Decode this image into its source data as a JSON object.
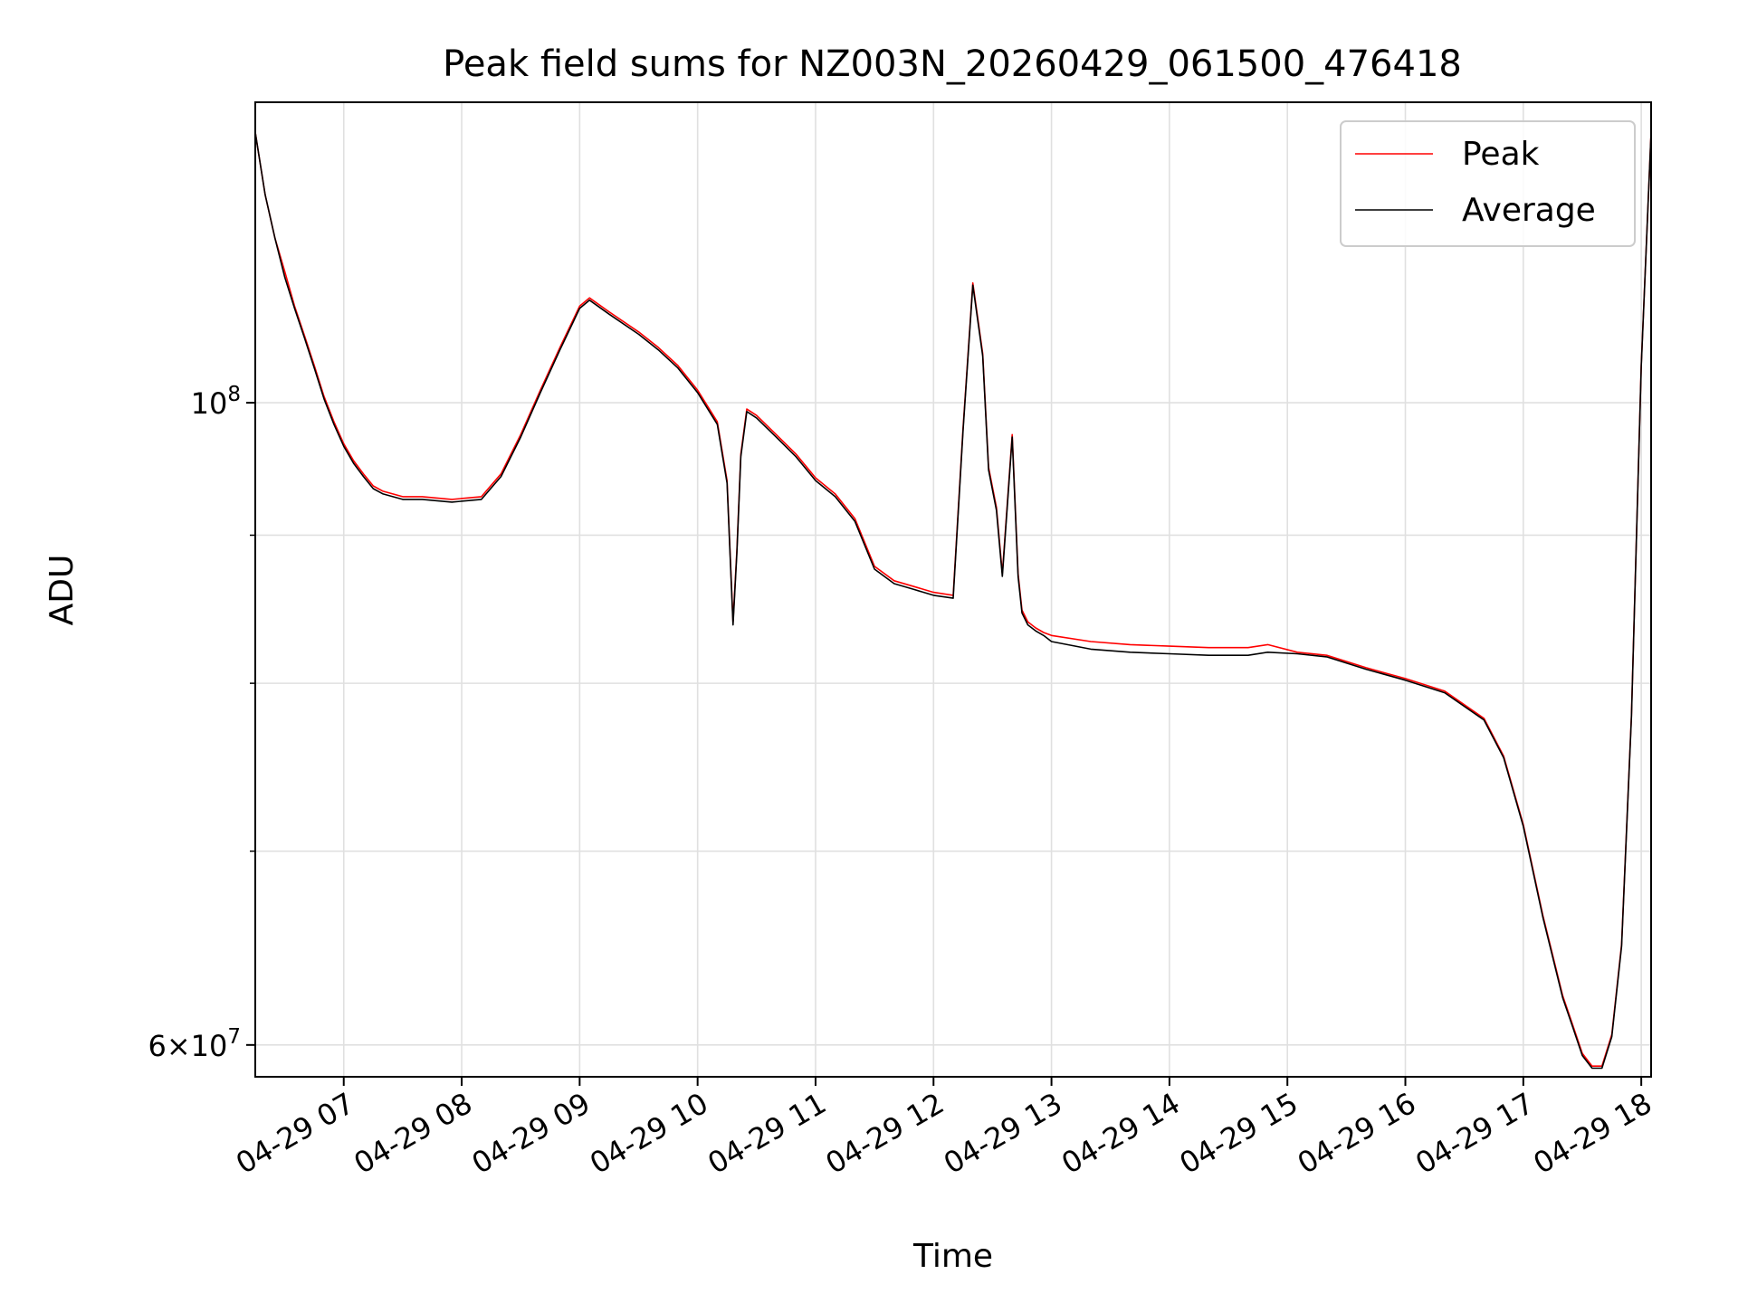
{
  "chart_data": {
    "type": "line",
    "title": "Peak field sums for NZ003N_20260429_061500_476418",
    "xlabel": "Time",
    "ylabel": "ADU",
    "yscale": "log",
    "grid": true,
    "legend_position": "top-right",
    "xlim": [
      "2026-04-29 06:15",
      "2026-04-29 18:05"
    ],
    "ylim": [
      58500000,
      127000000
    ],
    "x_ticks": [
      {
        "t": "2026-04-29 07:00",
        "label": "04-29 07"
      },
      {
        "t": "2026-04-29 08:00",
        "label": "04-29 08"
      },
      {
        "t": "2026-04-29 09:00",
        "label": "04-29 09"
      },
      {
        "t": "2026-04-29 10:00",
        "label": "04-29 10"
      },
      {
        "t": "2026-04-29 11:00",
        "label": "04-29 11"
      },
      {
        "t": "2026-04-29 12:00",
        "label": "04-29 12"
      },
      {
        "t": "2026-04-29 13:00",
        "label": "04-29 13"
      },
      {
        "t": "2026-04-29 14:00",
        "label": "04-29 14"
      },
      {
        "t": "2026-04-29 15:00",
        "label": "04-29 15"
      },
      {
        "t": "2026-04-29 16:00",
        "label": "04-29 16"
      },
      {
        "t": "2026-04-29 17:00",
        "label": "04-29 17"
      },
      {
        "t": "2026-04-29 18:00",
        "label": "04-29 18"
      }
    ],
    "y_major_ticks": [
      {
        "value": 100000000,
        "label_base": "10",
        "label_exp": "8"
      },
      {
        "value": 60000000,
        "label_base": "6×10",
        "label_exp": "7"
      }
    ],
    "y_minor_ticks": [
      70000000,
      80000000,
      90000000
    ],
    "series": [
      {
        "name": "Peak",
        "color": "#ff0000",
        "x": [
          "2026-04-29 06:15",
          "2026-04-29 06:20",
          "2026-04-29 06:25",
          "2026-04-29 06:30",
          "2026-04-29 06:35",
          "2026-04-29 06:40",
          "2026-04-29 06:45",
          "2026-04-29 06:50",
          "2026-04-29 06:55",
          "2026-04-29 07:00",
          "2026-04-29 07:05",
          "2026-04-29 07:10",
          "2026-04-29 07:15",
          "2026-04-29 07:20",
          "2026-04-29 07:30",
          "2026-04-29 07:40",
          "2026-04-29 07:55",
          "2026-04-29 08:10",
          "2026-04-29 08:20",
          "2026-04-29 08:30",
          "2026-04-29 08:40",
          "2026-04-29 08:50",
          "2026-04-29 09:00",
          "2026-04-29 09:05",
          "2026-04-29 09:15",
          "2026-04-29 09:30",
          "2026-04-29 09:40",
          "2026-04-29 09:50",
          "2026-04-29 10:00",
          "2026-04-29 10:10",
          "2026-04-29 10:15",
          "2026-04-29 10:18",
          "2026-04-29 10:20",
          "2026-04-29 10:22",
          "2026-04-29 10:25",
          "2026-04-29 10:30",
          "2026-04-29 10:40",
          "2026-04-29 10:50",
          "2026-04-29 11:00",
          "2026-04-29 11:10",
          "2026-04-29 11:20",
          "2026-04-29 11:30",
          "2026-04-29 11:40",
          "2026-04-29 11:50",
          "2026-04-29 12:00",
          "2026-04-29 12:10",
          "2026-04-29 12:15",
          "2026-04-29 12:20",
          "2026-04-29 12:25",
          "2026-04-29 12:28",
          "2026-04-29 12:32",
          "2026-04-29 12:35",
          "2026-04-29 12:40",
          "2026-04-29 12:43",
          "2026-04-29 12:45",
          "2026-04-29 12:48",
          "2026-04-29 12:52",
          "2026-04-29 12:56",
          "2026-04-29 13:00",
          "2026-04-29 13:20",
          "2026-04-29 13:40",
          "2026-04-29 14:00",
          "2026-04-29 14:20",
          "2026-04-29 14:40",
          "2026-04-29 14:50",
          "2026-04-29 15:05",
          "2026-04-29 15:20",
          "2026-04-29 15:40",
          "2026-04-29 16:00",
          "2026-04-29 16:20",
          "2026-04-29 16:40",
          "2026-04-29 16:50",
          "2026-04-29 17:00",
          "2026-04-29 17:10",
          "2026-04-29 17:20",
          "2026-04-29 17:25",
          "2026-04-29 17:30",
          "2026-04-29 17:35",
          "2026-04-29 17:40",
          "2026-04-29 17:45",
          "2026-04-29 17:50",
          "2026-04-29 17:55",
          "2026-04-29 18:00",
          "2026-04-29 18:05"
        ],
        "y": [
          124000000,
          118000000,
          114000000,
          111000000,
          108000000,
          105500000,
          103000000,
          100500000,
          98500000,
          96800000,
          95500000,
          94500000,
          93600000,
          93200000,
          92800000,
          92800000,
          92600000,
          92800000,
          94500000,
          97500000,
          101000000,
          104500000,
          108000000,
          108700000,
          107500000,
          105800000,
          104500000,
          103000000,
          101000000,
          98500000,
          94000000,
          84000000,
          89000000,
          96000000,
          99500000,
          99000000,
          97500000,
          96000000,
          94200000,
          93000000,
          91200000,
          87800000,
          86800000,
          86400000,
          86000000,
          85800000,
          98000000,
          110000000,
          104000000,
          95000000,
          92000000,
          87300000,
          97500000,
          87300000,
          84800000,
          84000000,
          83600000,
          83300000,
          83100000,
          82700000,
          82500000,
          82400000,
          82300000,
          82300000,
          82500000,
          82000000,
          81800000,
          81000000,
          80300000,
          79500000,
          77800000,
          75500000,
          71500000,
          66500000,
          62400000,
          61000000,
          59600000,
          59000000,
          59000000,
          60500000,
          65000000,
          78000000,
          103000000,
          124000000
        ]
      },
      {
        "name": "Average",
        "color": "#000000",
        "x": [
          "2026-04-29 06:15",
          "2026-04-29 06:20",
          "2026-04-29 06:25",
          "2026-04-29 06:30",
          "2026-04-29 06:35",
          "2026-04-29 06:40",
          "2026-04-29 06:45",
          "2026-04-29 06:50",
          "2026-04-29 06:55",
          "2026-04-29 07:00",
          "2026-04-29 07:05",
          "2026-04-29 07:10",
          "2026-04-29 07:15",
          "2026-04-29 07:20",
          "2026-04-29 07:30",
          "2026-04-29 07:40",
          "2026-04-29 07:55",
          "2026-04-29 08:10",
          "2026-04-29 08:20",
          "2026-04-29 08:30",
          "2026-04-29 08:40",
          "2026-04-29 08:50",
          "2026-04-29 09:00",
          "2026-04-29 09:05",
          "2026-04-29 09:15",
          "2026-04-29 09:30",
          "2026-04-29 09:40",
          "2026-04-29 09:50",
          "2026-04-29 10:00",
          "2026-04-29 10:10",
          "2026-04-29 10:15",
          "2026-04-29 10:18",
          "2026-04-29 10:20",
          "2026-04-29 10:22",
          "2026-04-29 10:25",
          "2026-04-29 10:30",
          "2026-04-29 10:40",
          "2026-04-29 10:50",
          "2026-04-29 11:00",
          "2026-04-29 11:10",
          "2026-04-29 11:20",
          "2026-04-29 11:30",
          "2026-04-29 11:40",
          "2026-04-29 11:50",
          "2026-04-29 12:00",
          "2026-04-29 12:10",
          "2026-04-29 12:15",
          "2026-04-29 12:20",
          "2026-04-29 12:25",
          "2026-04-29 12:28",
          "2026-04-29 12:32",
          "2026-04-29 12:35",
          "2026-04-29 12:40",
          "2026-04-29 12:43",
          "2026-04-29 12:45",
          "2026-04-29 12:48",
          "2026-04-29 12:52",
          "2026-04-29 12:56",
          "2026-04-29 13:00",
          "2026-04-29 13:20",
          "2026-04-29 13:40",
          "2026-04-29 14:00",
          "2026-04-29 14:20",
          "2026-04-29 14:40",
          "2026-04-29 14:50",
          "2026-04-29 15:05",
          "2026-04-29 15:20",
          "2026-04-29 15:40",
          "2026-04-29 16:00",
          "2026-04-29 16:20",
          "2026-04-29 16:40",
          "2026-04-29 16:50",
          "2026-04-29 17:00",
          "2026-04-29 17:10",
          "2026-04-29 17:20",
          "2026-04-29 17:25",
          "2026-04-29 17:30",
          "2026-04-29 17:35",
          "2026-04-29 17:40",
          "2026-04-29 17:45",
          "2026-04-29 17:50",
          "2026-04-29 17:55",
          "2026-04-29 18:00",
          "2026-04-29 18:05"
        ],
        "y": [
          124000000,
          118000000,
          114000000,
          110500000,
          107800000,
          105300000,
          102800000,
          100300000,
          98300000,
          96600000,
          95300000,
          94300000,
          93400000,
          93000000,
          92600000,
          92600000,
          92400000,
          92600000,
          94300000,
          97300000,
          100800000,
          104300000,
          107800000,
          108500000,
          107300000,
          105600000,
          104300000,
          102800000,
          100800000,
          98300000,
          93800000,
          83800000,
          88800000,
          95800000,
          99300000,
          98800000,
          97300000,
          95800000,
          94000000,
          92800000,
          91000000,
          87600000,
          86600000,
          86200000,
          85800000,
          85600000,
          97800000,
          109800000,
          103800000,
          94800000,
          91800000,
          87100000,
          97300000,
          87100000,
          84600000,
          83800000,
          83400000,
          83100000,
          82700000,
          82200000,
          82000000,
          81900000,
          81800000,
          81800000,
          82000000,
          81900000,
          81700000,
          80900000,
          80200000,
          79400000,
          77700000,
          75400000,
          71400000,
          66400000,
          62300000,
          60900000,
          59500000,
          58900000,
          58900000,
          60400000,
          64900000,
          77900000,
          102900000,
          124000000
        ]
      }
    ]
  }
}
